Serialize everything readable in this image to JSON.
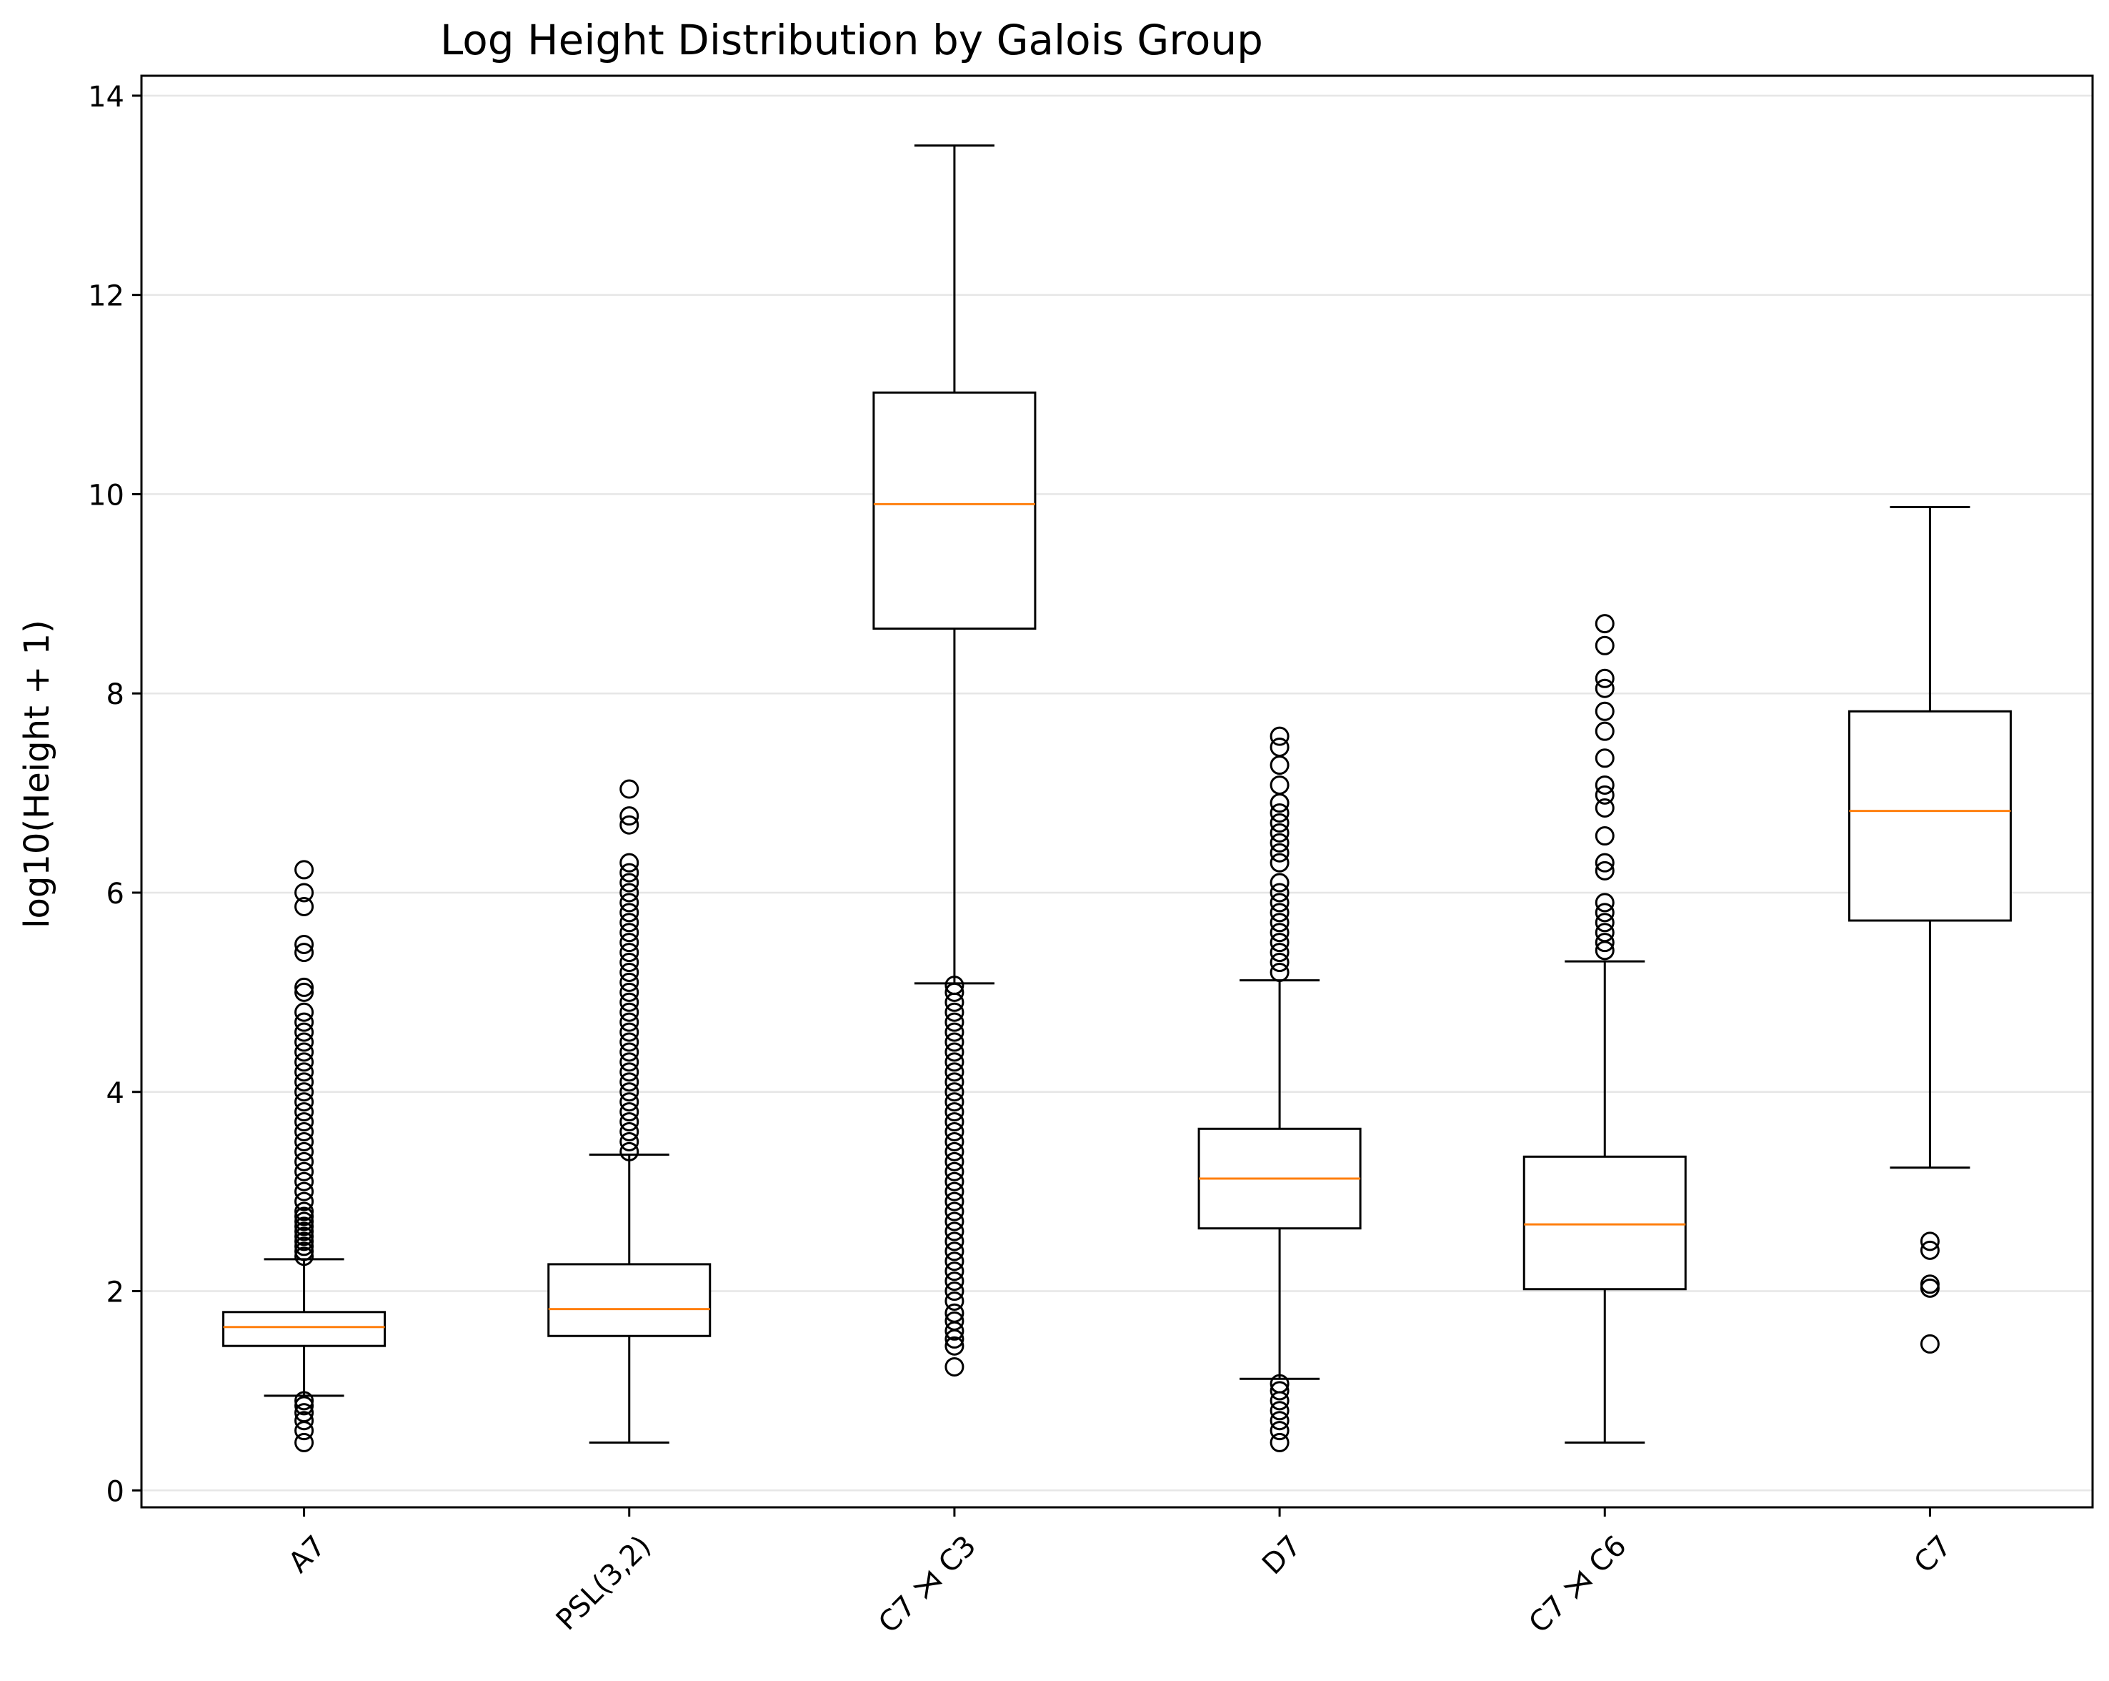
{
  "chart_data": {
    "type": "box",
    "title": "Log Height Distribution by Galois Group",
    "xlabel": "",
    "ylabel": "log10(Height + 1)",
    "ylim": [
      -0.17,
      14.2
    ],
    "yticks": [
      "0",
      "2",
      "4",
      "6",
      "8",
      "10",
      "12",
      "14"
    ],
    "ytick_values": [
      0,
      2,
      4,
      6,
      8,
      10,
      12,
      14
    ],
    "grid": "horizontal",
    "colors": {
      "box": "#000000",
      "median": "#ff7f0e",
      "grid": "#e6e6e6"
    },
    "groups": [
      {
        "name": "A7",
        "whisker_low": 0.95,
        "q1": 1.45,
        "median": 1.64,
        "q3": 1.79,
        "whisker_high": 2.32,
        "outliers_low": [
          0.48,
          0.6,
          0.7,
          0.78,
          0.85,
          0.9
        ],
        "outliers_high": [
          2.35,
          2.4,
          2.45,
          2.5,
          2.55,
          2.6,
          2.65,
          2.7,
          2.75,
          2.8,
          2.9,
          3.0,
          3.1,
          3.2,
          3.3,
          3.4,
          3.5,
          3.6,
          3.7,
          3.8,
          3.9,
          4.0,
          4.1,
          4.2,
          4.3,
          4.4,
          4.5,
          4.6,
          4.7,
          4.8,
          5.0,
          5.05,
          5.4,
          5.48,
          5.86,
          6.0,
          6.23
        ]
      },
      {
        "name": "PSL(3,2)",
        "whisker_low": 0.48,
        "q1": 1.55,
        "median": 1.82,
        "q3": 2.27,
        "whisker_high": 3.37,
        "outliers_low": [],
        "outliers_high": [
          3.4,
          3.5,
          3.6,
          3.7,
          3.8,
          3.9,
          4.0,
          4.1,
          4.2,
          4.3,
          4.4,
          4.5,
          4.6,
          4.7,
          4.8,
          4.9,
          5.0,
          5.1,
          5.2,
          5.3,
          5.4,
          5.5,
          5.6,
          5.7,
          5.8,
          5.9,
          6.0,
          6.1,
          6.2,
          6.3,
          6.68,
          6.77,
          7.04
        ]
      },
      {
        "name": "C7 ⋊ C3",
        "whisker_low": 5.09,
        "q1": 8.65,
        "median": 9.9,
        "q3": 11.02,
        "whisker_high": 13.5,
        "outliers_low": [
          1.24,
          1.45,
          1.52,
          1.6,
          1.7,
          1.78,
          1.9,
          2.0,
          2.1,
          2.2,
          2.3,
          2.4,
          2.5,
          2.6,
          2.7,
          2.8,
          2.9,
          3.0,
          3.1,
          3.2,
          3.3,
          3.4,
          3.5,
          3.6,
          3.7,
          3.8,
          3.9,
          4.0,
          4.1,
          4.2,
          4.3,
          4.4,
          4.5,
          4.6,
          4.7,
          4.8,
          4.9,
          5.0,
          5.07
        ],
        "outliers_high": []
      },
      {
        "name": "D7",
        "whisker_low": 1.12,
        "q1": 2.63,
        "median": 3.13,
        "q3": 3.63,
        "whisker_high": 5.12,
        "outliers_low": [
          0.48,
          0.6,
          0.7,
          0.8,
          0.9,
          1.0,
          1.07
        ],
        "outliers_high": [
          5.2,
          5.3,
          5.4,
          5.5,
          5.6,
          5.7,
          5.8,
          5.9,
          6.0,
          6.1,
          6.3,
          6.4,
          6.5,
          6.6,
          6.7,
          6.8,
          6.9,
          7.08,
          7.28,
          7.46,
          7.57
        ]
      },
      {
        "name": "C7 ⋊ C6",
        "whisker_low": 0.48,
        "q1": 2.02,
        "median": 2.67,
        "q3": 3.35,
        "whisker_high": 5.31,
        "outliers_low": [],
        "outliers_high": [
          5.42,
          5.5,
          5.6,
          5.7,
          5.8,
          5.9,
          6.22,
          6.3,
          6.57,
          6.85,
          6.98,
          7.08,
          7.35,
          7.62,
          7.82,
          8.05,
          8.15,
          8.48,
          8.7
        ]
      },
      {
        "name": "C7",
        "whisker_low": 3.24,
        "q1": 5.72,
        "median": 6.82,
        "q3": 7.82,
        "whisker_high": 9.87,
        "outliers_low": [
          1.47,
          2.03,
          2.07,
          2.41,
          2.5
        ],
        "outliers_high": []
      }
    ]
  }
}
